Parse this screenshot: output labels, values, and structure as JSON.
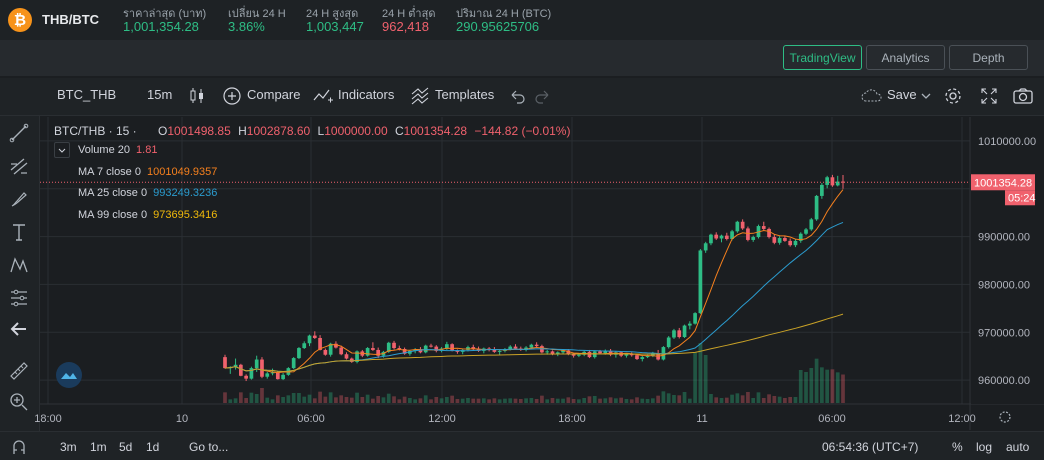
{
  "ticker": {
    "logo_glyph": "₿",
    "pair": "THB/BTC",
    "stats": [
      {
        "label": "ราคาล่าสุด (บาท)",
        "value": "1,001,354.28",
        "color": "green"
      },
      {
        "label": "เปลี่ยน 24 H",
        "value": "3.86%",
        "color": "green"
      },
      {
        "label": "24 H สูงสุด",
        "value": "1,003,447",
        "color": "green"
      },
      {
        "label": "24 H ต่ำสุด",
        "value": "962,418",
        "color": "red"
      },
      {
        "label": "ปริมาณ 24 H (BTC)",
        "value": "290.95625706",
        "color": "green"
      }
    ]
  },
  "viewbar": {
    "tradingview": "TradingView",
    "analytics": "Analytics",
    "depth": "Depth"
  },
  "toolbar": {
    "symbol": "BTC_THB",
    "interval": "15m",
    "compare": "Compare",
    "indicators": "Indicators",
    "templates": "Templates",
    "save": "Save"
  },
  "legend": {
    "symbol": "BTC/THB · 15 ·",
    "o_label": "O",
    "o": "1001498.85",
    "h_label": "H",
    "h": "1002878.60",
    "l_label": "L",
    "l": "1000000.00",
    "c_label": "C",
    "c": "1001354.28",
    "change": "−144.82 (−0.01%)",
    "volume": {
      "name": "Volume 20",
      "value": "1.81"
    },
    "ma7": {
      "name": "MA 7 close 0",
      "value": "1001049.9357",
      "color": "#f5801e"
    },
    "ma25": {
      "name": "MA 25 close 0",
      "value": "993249.3236",
      "color": "#2b9ccf"
    },
    "ma99": {
      "name": "MA 99 close 0",
      "value": "973695.3416",
      "color": "#f0b90b"
    }
  },
  "price_axis": {
    "ticks": [
      "1010000.00",
      "990000.00",
      "980000.00",
      "970000.00",
      "960000.00"
    ],
    "last_price": "1001354.28",
    "countdown": "05:24"
  },
  "time_axis": {
    "ticks": [
      "18:00",
      "10",
      "06:00",
      "12:00",
      "18:00",
      "11",
      "06:00",
      "12:00"
    ]
  },
  "bottombar": {
    "ranges": [
      "3m",
      "1m",
      "5d",
      "1d"
    ],
    "goto": "Go to...",
    "clock": "06:54:36 (UTC+7)",
    "percent": "%",
    "log": "log",
    "auto": "auto"
  },
  "chart_data": {
    "type": "candlestick",
    "ylim": [
      955000,
      1015000
    ],
    "last_price": 1001354.28,
    "candles": [
      [
        964800,
        965300,
        962400,
        962500
      ],
      [
        962500,
        962900,
        961300,
        962700
      ],
      [
        962700,
        964500,
        962200,
        963200
      ],
      [
        963200,
        963400,
        960800,
        960900
      ],
      [
        960900,
        961200,
        959800,
        960300
      ],
      [
        960300,
        962800,
        960100,
        962500
      ],
      [
        962500,
        965100,
        961700,
        964300
      ],
      [
        964300,
        964800,
        960400,
        960700
      ],
      [
        960700,
        961700,
        960300,
        961400
      ],
      [
        961400,
        962400,
        961000,
        961600
      ],
      [
        961600,
        961900,
        960100,
        960200
      ],
      [
        960200,
        961500,
        960000,
        961100
      ],
      [
        961100,
        962700,
        960900,
        962500
      ],
      [
        962500,
        964800,
        962300,
        964600
      ],
      [
        964600,
        966900,
        964400,
        966700
      ],
      [
        966700,
        968100,
        966500,
        967700
      ],
      [
        967700,
        969500,
        967100,
        969300
      ],
      [
        969300,
        970200,
        968600,
        968800
      ],
      [
        968800,
        969400,
        966200,
        966300
      ],
      [
        966300,
        966600,
        965100,
        965300
      ],
      [
        965300,
        967800,
        964900,
        967600
      ],
      [
        967600,
        968100,
        966600,
        966800
      ],
      [
        966800,
        967200,
        965200,
        965400
      ],
      [
        965400,
        965800,
        964300,
        964500
      ],
      [
        964500,
        964700,
        963600,
        963800
      ],
      [
        963800,
        966200,
        963500,
        966000
      ],
      [
        966000,
        966300,
        964800,
        965100
      ],
      [
        965100,
        966900,
        964900,
        966700
      ],
      [
        966700,
        967900,
        966100,
        966300
      ],
      [
        966300,
        966800,
        964600,
        965100
      ],
      [
        965100,
        966100,
        964700,
        965900
      ],
      [
        965900,
        968000,
        965700,
        967800
      ],
      [
        967800,
        968200,
        966400,
        966700
      ],
      [
        966700,
        967200,
        966200,
        966500
      ],
      [
        966500,
        966800,
        965300,
        965500
      ],
      [
        965500,
        966300,
        965100,
        966100
      ],
      [
        966100,
        966700,
        965600,
        966300
      ],
      [
        966300,
        966900,
        965600,
        965800
      ],
      [
        965800,
        967400,
        965600,
        967200
      ],
      [
        967200,
        967600,
        966800,
        967000
      ],
      [
        967000,
        967300,
        965800,
        966100
      ],
      [
        966100,
        966900,
        965800,
        966600
      ],
      [
        966600,
        968000,
        966300,
        967500
      ],
      [
        967500,
        967700,
        966000,
        966200
      ],
      [
        966200,
        966400,
        965500,
        965900
      ],
      [
        965900,
        966500,
        965400,
        966300
      ],
      [
        966300,
        967200,
        966000,
        966900
      ],
      [
        966900,
        967400,
        966200,
        966500
      ],
      [
        966500,
        967000,
        965900,
        966100
      ],
      [
        966100,
        966800,
        965600,
        966600
      ],
      [
        966600,
        966900,
        966000,
        966400
      ],
      [
        966400,
        966900,
        965700,
        965900
      ],
      [
        965900,
        966300,
        965300,
        966100
      ],
      [
        966100,
        966700,
        965800,
        966500
      ],
      [
        966500,
        967300,
        966200,
        967000
      ],
      [
        967000,
        967500,
        966400,
        966600
      ],
      [
        966600,
        967000,
        966100,
        966300
      ],
      [
        966300,
        967100,
        966000,
        966800
      ],
      [
        966800,
        967600,
        966500,
        967400
      ],
      [
        967400,
        967900,
        966800,
        967100
      ],
      [
        967100,
        967400,
        965600,
        965800
      ],
      [
        965800,
        966300,
        965300,
        966000
      ],
      [
        966000,
        966200,
        965200,
        965400
      ],
      [
        965400,
        966000,
        965000,
        965800
      ],
      [
        965800,
        966400,
        965500,
        966200
      ],
      [
        966200,
        966500,
        965200,
        965400
      ],
      [
        965400,
        965700,
        964700,
        965100
      ],
      [
        965100,
        965600,
        964800,
        965300
      ],
      [
        965300,
        966100,
        965000,
        965900
      ],
      [
        965900,
        966300,
        964600,
        964800
      ],
      [
        964800,
        966200,
        964500,
        966000
      ],
      [
        966000,
        966300,
        965400,
        965600
      ],
      [
        965600,
        966400,
        965300,
        966100
      ],
      [
        966100,
        966500,
        965000,
        965300
      ],
      [
        965300,
        966100,
        964700,
        965800
      ],
      [
        965800,
        966000,
        964800,
        965100
      ],
      [
        965100,
        965600,
        964700,
        965400
      ],
      [
        965400,
        965800,
        964900,
        965200
      ],
      [
        965200,
        965500,
        964200,
        964400
      ],
      [
        964400,
        965100,
        963900,
        964800
      ],
      [
        964800,
        965300,
        964600,
        965100
      ],
      [
        965100,
        965900,
        964800,
        965600
      ],
      [
        965600,
        966300,
        964100,
        964300
      ],
      [
        964300,
        967100,
        964100,
        966900
      ],
      [
        966900,
        969200,
        966600,
        968900
      ],
      [
        968900,
        970700,
        968600,
        970400
      ],
      [
        970400,
        970900,
        968700,
        969000
      ],
      [
        969000,
        971600,
        968800,
        971400
      ],
      [
        971400,
        972300,
        970600,
        971800
      ],
      [
        971800,
        974200,
        971600,
        974000
      ],
      [
        974000,
        987400,
        973800,
        987100
      ],
      [
        987100,
        988900,
        986600,
        988600
      ],
      [
        988600,
        990600,
        988200,
        990400
      ],
      [
        990400,
        990900,
        989300,
        989600
      ],
      [
        989600,
        990400,
        988800,
        990200
      ],
      [
        990200,
        990800,
        989200,
        989500
      ],
      [
        989500,
        991400,
        989200,
        991100
      ],
      [
        991100,
        993300,
        990800,
        993100
      ],
      [
        993100,
        993600,
        991400,
        991700
      ],
      [
        991700,
        992100,
        989000,
        989300
      ],
      [
        989300,
        990200,
        988900,
        989900
      ],
      [
        989900,
        992500,
        989600,
        992200
      ],
      [
        992200,
        993100,
        991300,
        991600
      ],
      [
        991600,
        991900,
        989600,
        989900
      ],
      [
        989900,
        990500,
        988400,
        988700
      ],
      [
        988700,
        990100,
        988300,
        989700
      ],
      [
        989700,
        990200,
        988900,
        989100
      ],
      [
        989100,
        989600,
        987900,
        988200
      ],
      [
        988200,
        989400,
        987800,
        989100
      ],
      [
        989100,
        990900,
        988700,
        990600
      ],
      [
        990600,
        991800,
        990300,
        991500
      ],
      [
        991500,
        993900,
        991200,
        993600
      ],
      [
        993600,
        998700,
        993300,
        998500
      ],
      [
        998500,
        1001200,
        997900,
        1000800
      ],
      [
        1000800,
        1002700,
        1000100,
        1002400
      ],
      [
        1002400,
        1002900,
        1000400,
        1000700
      ],
      [
        1000700,
        1002700,
        1000500,
        1001500
      ],
      [
        1001500,
        1002879,
        1000000,
        1001354
      ]
    ],
    "volume_max_bars": "heights in same scale as candles"
  }
}
